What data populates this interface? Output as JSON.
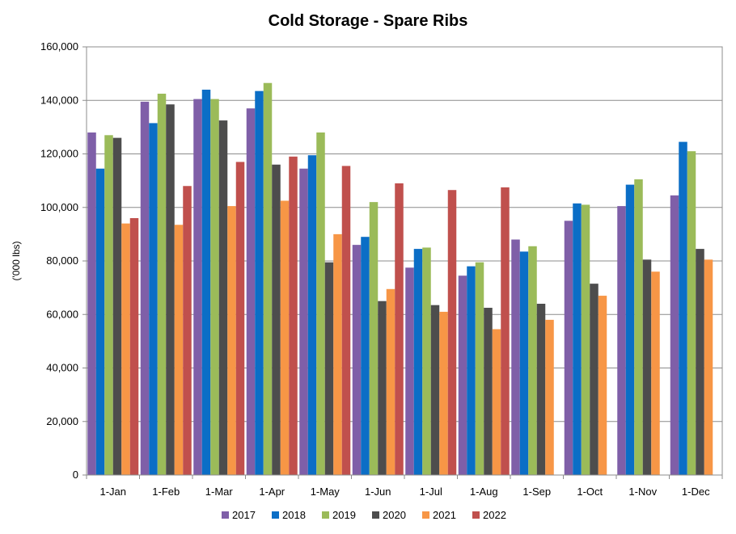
{
  "chart_data": {
    "type": "bar",
    "title": "Cold Storage - Spare Ribs",
    "xlabel": "",
    "ylabel": "('000 lbs)",
    "ylim": [
      0,
      160000
    ],
    "yticks": [
      0,
      20000,
      40000,
      60000,
      80000,
      100000,
      120000,
      140000,
      160000
    ],
    "ytick_labels": [
      "0",
      "20,000",
      "40,000",
      "60,000",
      "80,000",
      "100,000",
      "120,000",
      "140,000",
      "160,000"
    ],
    "grid": true,
    "legend_position": "bottom",
    "categories": [
      "1-Jan",
      "1-Feb",
      "1-Mar",
      "1-Apr",
      "1-May",
      "1-Jun",
      "1-Jul",
      "1-Aug",
      "1-Sep",
      "1-Oct",
      "1-Nov",
      "1-Dec"
    ],
    "series": [
      {
        "name": "2017",
        "color": "#7f5fa8",
        "values": [
          128000,
          139500,
          140500,
          137000,
          114500,
          86000,
          77500,
          74500,
          88000,
          95000,
          100500,
          104500
        ]
      },
      {
        "name": "2018",
        "color": "#0b6ec6",
        "values": [
          114500,
          131500,
          144000,
          143500,
          119500,
          89000,
          84500,
          78000,
          83500,
          101500,
          108500,
          124500
        ]
      },
      {
        "name": "2019",
        "color": "#9bbb59",
        "values": [
          127000,
          142500,
          140500,
          146500,
          128000,
          102000,
          85000,
          79500,
          85500,
          101000,
          110500,
          121000
        ]
      },
      {
        "name": "2020",
        "color": "#4d4d4d",
        "values": [
          126000,
          138500,
          132500,
          116000,
          79500,
          65000,
          63500,
          62500,
          64000,
          71500,
          80500,
          84500
        ]
      },
      {
        "name": "2021",
        "color": "#f79646",
        "values": [
          94000,
          93500,
          100500,
          102500,
          90000,
          69500,
          61000,
          54500,
          58000,
          67000,
          76000,
          80500
        ]
      },
      {
        "name": "2022",
        "color": "#c0504d",
        "values": [
          96000,
          108000,
          117000,
          119000,
          115500,
          109000,
          106500,
          107500,
          null,
          null,
          null,
          null
        ]
      }
    ]
  }
}
